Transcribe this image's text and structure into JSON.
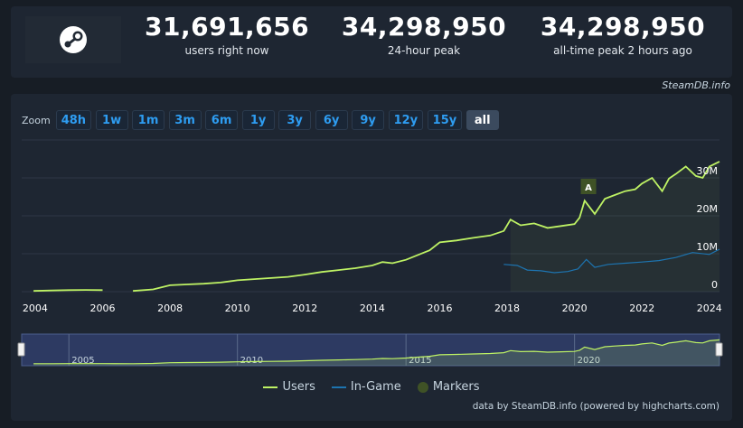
{
  "stats": [
    {
      "value": "31,691,656",
      "label": "users right now"
    },
    {
      "value": "34,298,950",
      "label": "24-hour peak"
    },
    {
      "value": "34,298,950",
      "label": "all-time peak 2 hours ago"
    }
  ],
  "credit_top": "SteamDB.info",
  "zoom": {
    "label": "Zoom",
    "buttons": [
      "48h",
      "1w",
      "1m",
      "3m",
      "6m",
      "1y",
      "3y",
      "6y",
      "9y",
      "12y",
      "15y",
      "all"
    ],
    "active": "all"
  },
  "legend": [
    {
      "label": "Users",
      "color": "#bef264"
    },
    {
      "label": "In-Game",
      "color": "#1d74b0"
    },
    {
      "label": "Markers",
      "color": "#3f5226"
    }
  ],
  "credit_bottom": "data by SteamDB.info (powered by highcharts.com)",
  "colors": {
    "users": "#bef264",
    "ingame": "#1d74b0",
    "marker": "#3f5226",
    "background": "#1e2632"
  },
  "chart_data": {
    "type": "line",
    "x_range": [
      2003.6,
      2024.3
    ],
    "y_range": [
      0,
      40000000
    ],
    "y_ticks": [
      {
        "value": 0,
        "label": "0"
      },
      {
        "value": 10000000,
        "label": "10M"
      },
      {
        "value": 20000000,
        "label": "20M"
      },
      {
        "value": 30000000,
        "label": "30M"
      }
    ],
    "x_ticks": [
      "2004",
      "2006",
      "2008",
      "2010",
      "2012",
      "2014",
      "2016",
      "2018",
      "2020",
      "2022",
      "2024"
    ],
    "navigator_labels": [
      "2005",
      "2010",
      "2015",
      "2020"
    ],
    "marker": {
      "label": "A",
      "x": 2020.4
    },
    "series": [
      {
        "name": "Users",
        "color": "#bef264",
        "x": [
          2003.95,
          2004.5,
          2005.0,
          2005.5,
          2006.0,
          2006.9,
          2007.5,
          2008.0,
          2008.5,
          2009.0,
          2009.5,
          2010.0,
          2010.5,
          2011.0,
          2011.5,
          2012.0,
          2012.5,
          2013.0,
          2013.5,
          2014.0,
          2014.3,
          2014.6,
          2015.0,
          2015.5,
          2015.7,
          2016.0,
          2016.5,
          2017.0,
          2017.5,
          2017.9,
          2018.1,
          2018.4,
          2018.8,
          2019.2,
          2019.6,
          2020.0,
          2020.15,
          2020.3,
          2020.6,
          2020.9,
          2021.2,
          2021.5,
          2021.8,
          2022.0,
          2022.3,
          2022.6,
          2022.8,
          2023.0,
          2023.3,
          2023.6,
          2023.8,
          2024.0,
          2024.3
        ],
        "y": [
          200000,
          300000,
          400000,
          450000,
          400000,
          200000,
          600000,
          1700000,
          1900000,
          2100000,
          2400000,
          3000000,
          3300000,
          3600000,
          3900000,
          4500000,
          5200000,
          5700000,
          6200000,
          6900000,
          7800000,
          7500000,
          8400000,
          10200000,
          10900000,
          13000000,
          13500000,
          14200000,
          14800000,
          16000000,
          19000000,
          17500000,
          18000000,
          16800000,
          17300000,
          17800000,
          19500000,
          24000000,
          20500000,
          24500000,
          25500000,
          26500000,
          27000000,
          28500000,
          30000000,
          26500000,
          29800000,
          31000000,
          33000000,
          30500000,
          30000000,
          33000000,
          34300000
        ]
      },
      {
        "name": "In-Game",
        "color": "#1d74b0",
        "x": [
          2017.9,
          2018.3,
          2018.6,
          2019.0,
          2019.4,
          2019.8,
          2020.1,
          2020.35,
          2020.6,
          2021.0,
          2021.5,
          2022.0,
          2022.5,
          2023.0,
          2023.5,
          2024.0,
          2024.3
        ],
        "y": [
          7200000,
          6900000,
          5700000,
          5500000,
          5000000,
          5300000,
          6000000,
          8500000,
          6400000,
          7200000,
          7500000,
          7800000,
          8200000,
          9000000,
          10300000,
          9800000,
          11200000
        ]
      }
    ]
  }
}
